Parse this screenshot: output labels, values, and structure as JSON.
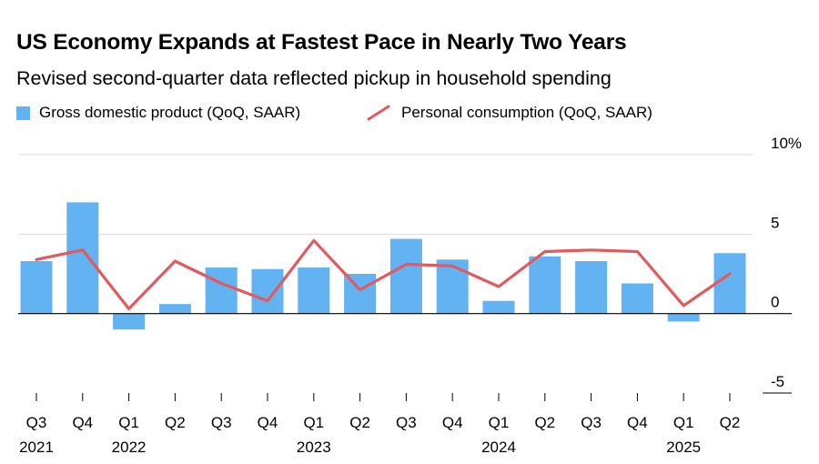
{
  "title": "US Economy Expands at Fastest Pace in Nearly Two Years",
  "subtitle": "Revised second-quarter data reflected pickup in household spending",
  "colors": {
    "bar": "#63b3f2",
    "line": "#e05a5e",
    "grid": "#dddddd",
    "axis": "#000000"
  },
  "chart_data": {
    "type": "bar",
    "legend": [
      {
        "label": "Gross domestic product (QoQ, SAAR)",
        "kind": "bar"
      },
      {
        "label": "Personal consumption (QoQ, SAAR)",
        "kind": "line"
      }
    ],
    "quarters": [
      "Q3",
      "Q4",
      "Q1",
      "Q2",
      "Q3",
      "Q4",
      "Q1",
      "Q2",
      "Q3",
      "Q4",
      "Q1",
      "Q2",
      "Q3",
      "Q4",
      "Q1",
      "Q2"
    ],
    "years": [
      {
        "label": "2021",
        "index": 0
      },
      {
        "label": "2022",
        "index": 2
      },
      {
        "label": "2023",
        "index": 6
      },
      {
        "label": "2024",
        "index": 10
      },
      {
        "label": "2025",
        "index": 14
      }
    ],
    "series": [
      {
        "name": "Gross domestic product (QoQ, SAAR)",
        "type": "bar",
        "values": [
          3.3,
          7.0,
          -1.0,
          0.6,
          2.9,
          2.8,
          2.9,
          2.5,
          4.7,
          3.4,
          0.8,
          3.6,
          3.3,
          1.9,
          -0.5,
          3.8
        ]
      },
      {
        "name": "Personal consumption (QoQ, SAAR)",
        "type": "line",
        "values": [
          3.4,
          4.0,
          0.3,
          3.3,
          1.9,
          0.8,
          4.6,
          1.5,
          3.1,
          3.0,
          1.7,
          3.9,
          4.0,
          3.9,
          0.5,
          2.5
        ]
      }
    ],
    "y_ticks": [
      {
        "value": 10,
        "label": "10%"
      },
      {
        "value": 5,
        "label": "5"
      },
      {
        "value": 0,
        "label": "0"
      },
      {
        "value": -5,
        "label": "-5"
      }
    ],
    "ylim": [
      -5,
      10
    ]
  }
}
